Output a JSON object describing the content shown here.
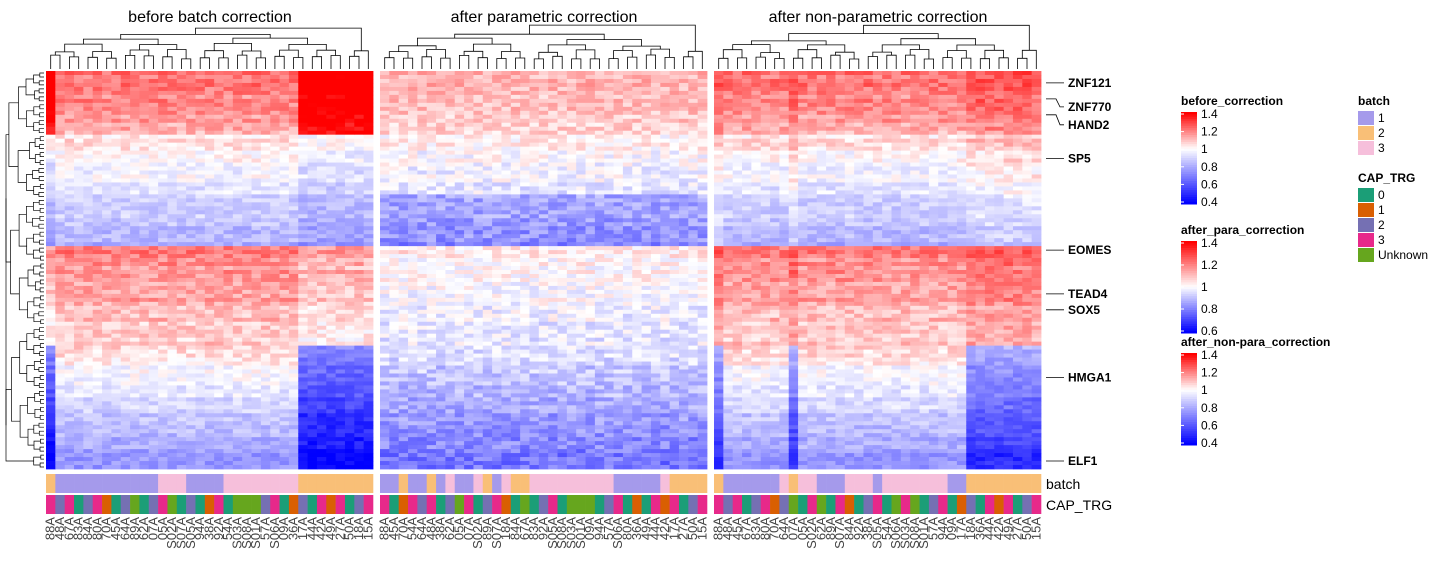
{
  "chart_data": {
    "type": "heatmap",
    "panels": [
      {
        "title": "before batch correction",
        "legend_title": "before_correction",
        "color_range": [
          0.4,
          1.4
        ],
        "legend_ticks": [
          "1.4",
          "1.2",
          "1",
          "0.8",
          "0.6",
          "0.4"
        ],
        "column_labels": [
          "88A",
          "48A",
          "67A",
          "83A",
          "84A",
          "80A",
          "70A",
          "45A",
          "64A",
          "89A",
          "62A",
          "07A",
          "05A",
          "S02A",
          "S07A",
          "S05A",
          "94A",
          "38A",
          "92A",
          "54A",
          "S03A",
          "S08A",
          "S01A",
          "57A",
          "S06A",
          "09A",
          "36A",
          "17A",
          "44A",
          "42A",
          "49A",
          "27A",
          "50A",
          "18A",
          "15A"
        ],
        "batch": [
          2,
          1,
          1,
          1,
          1,
          1,
          1,
          1,
          1,
          1,
          1,
          1,
          3,
          3,
          3,
          1,
          1,
          1,
          1,
          3,
          3,
          3,
          3,
          3,
          3,
          3,
          3,
          2,
          2,
          2,
          2,
          2,
          2,
          2,
          2
        ],
        "cap_trg": [
          "3",
          "2",
          "3",
          "0",
          "2",
          "3",
          "1",
          "0",
          "2",
          "Unknown",
          "0",
          "2",
          "3",
          "Unknown",
          "0",
          "2",
          "0",
          "1",
          "3",
          "0",
          "Unknown",
          "Unknown",
          "Unknown",
          "2",
          "3",
          "0",
          "1",
          "2",
          "0",
          "3",
          "1",
          "3",
          "0",
          "2",
          "3"
        ]
      },
      {
        "title": "after parametric correction",
        "legend_title": "after_para_correction",
        "color_range": [
          0.6,
          1.4
        ],
        "legend_ticks": [
          "1.4",
          "1.2",
          "1",
          "0.8",
          "0.6"
        ],
        "column_labels": [
          "88A",
          "45A",
          "70A",
          "54A",
          "64A",
          "48A",
          "38A",
          "62A",
          "05A",
          "07A",
          "S02A",
          "89A",
          "S07A",
          "18A",
          "84A",
          "67A",
          "83A",
          "92A",
          "S05A",
          "S08A",
          "S03A",
          "S01A",
          "09A",
          "94A",
          "57A",
          "S06A",
          "80A",
          "36A",
          "49A",
          "44A",
          "42A",
          "17A",
          "27A",
          "50A",
          "15A"
        ],
        "batch": [
          1,
          1,
          2,
          1,
          1,
          2,
          1,
          3,
          1,
          1,
          3,
          2,
          1,
          3,
          2,
          2,
          3,
          3,
          3,
          3,
          3,
          3,
          3,
          3,
          3,
          1,
          1,
          1,
          1,
          1,
          3,
          2,
          2,
          2,
          2
        ],
        "cap_trg": [
          "3",
          "0",
          "1",
          "3",
          "2",
          "3",
          "0",
          "2",
          "Unknown",
          "3",
          "0",
          "2",
          "3",
          "1",
          "0",
          "Unknown",
          "0",
          "2",
          "3",
          "0",
          "Unknown",
          "Unknown",
          "Unknown",
          "0",
          "2",
          "3",
          "0",
          "1",
          "0",
          "3",
          "1",
          "3",
          "0",
          "2",
          "3"
        ]
      },
      {
        "title": "after non-parametric correction",
        "legend_title": "after_non-para_correction",
        "color_range": [
          0.4,
          1.4
        ],
        "legend_ticks": [
          "1.4",
          "1.2",
          "1",
          "0.8",
          "0.6",
          "0.4"
        ],
        "column_labels": [
          "88A",
          "48A",
          "45A",
          "67A",
          "83A",
          "80A",
          "70A",
          "64A",
          "07A",
          "05A",
          "S02A",
          "62A",
          "89A",
          "S07A",
          "84A",
          "92A",
          "38A",
          "S05A",
          "54A",
          "S06A",
          "S03A",
          "S08A",
          "S01A",
          "57A",
          "94A",
          "09A",
          "17A",
          "18A",
          "36A",
          "44A",
          "42A",
          "49A",
          "27A",
          "50A",
          "15A"
        ],
        "batch": [
          2,
          1,
          1,
          1,
          1,
          1,
          1,
          3,
          2,
          3,
          3,
          1,
          1,
          1,
          3,
          3,
          3,
          1,
          3,
          3,
          3,
          3,
          3,
          3,
          3,
          1,
          1,
          2,
          2,
          2,
          2,
          2,
          2,
          2,
          2
        ],
        "cap_trg": [
          "3",
          "2",
          "3",
          "0",
          "2",
          "3",
          "1",
          "2",
          "Unknown",
          "0",
          "3",
          "Unknown",
          "0",
          "3",
          "1",
          "0",
          "2",
          "3",
          "0",
          "Unknown",
          "3",
          "Unknown",
          "0",
          "2",
          "3",
          "0",
          "1",
          "2",
          "0",
          "3",
          "1",
          "3",
          "0",
          "2",
          "3"
        ]
      }
    ],
    "row_genes": [
      {
        "label": "ZNF121",
        "row_fraction": 0.03
      },
      {
        "label": "ZNF770",
        "row_fraction": 0.07
      },
      {
        "label": "HAND2",
        "row_fraction": 0.11
      },
      {
        "label": "SP5",
        "row_fraction": 0.22
      },
      {
        "label": "EOMES",
        "row_fraction": 0.45
      },
      {
        "label": "TEAD4",
        "row_fraction": 0.56
      },
      {
        "label": "SOX5",
        "row_fraction": 0.6
      },
      {
        "label": "HMGA1",
        "row_fraction": 0.77
      },
      {
        "label": "ELF1",
        "row_fraction": 0.98
      }
    ],
    "annotations": {
      "batch": {
        "title": "batch",
        "levels": [
          {
            "label": "1",
            "color": "#A59AEB"
          },
          {
            "label": "2",
            "color": "#F9BF77"
          },
          {
            "label": "3",
            "color": "#F6BFDB"
          }
        ]
      },
      "cap_trg": {
        "title": "CAP_TRG",
        "levels": [
          {
            "label": "0",
            "color": "#1B9E77"
          },
          {
            "label": "1",
            "color": "#D95F02"
          },
          {
            "label": "2",
            "color": "#7570B3"
          },
          {
            "label": "3",
            "color": "#E7298A"
          },
          {
            "label": "Unknown",
            "color": "#66A61E"
          }
        ]
      }
    },
    "row_annotation_names": [
      "batch",
      "CAP_TRG"
    ],
    "colors": {
      "high": "#FF0000",
      "mid": "#FFFFFF",
      "low": "#0000FF"
    }
  }
}
